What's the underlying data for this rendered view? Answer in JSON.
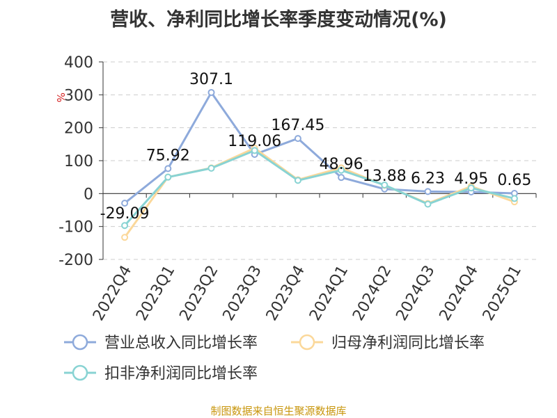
{
  "chart_data": {
    "type": "line",
    "title": "营收、净利同比增长率季度变动情况(%)",
    "ylabel": "%",
    "xlabel": "",
    "categories": [
      "2022Q4",
      "2023Q1",
      "2023Q2",
      "2023Q3",
      "2023Q4",
      "2024Q1",
      "2024Q2",
      "2024Q3",
      "2024Q4",
      "2025Q1"
    ],
    "ylim": [
      -200,
      400
    ],
    "yticks": [
      "400",
      "300",
      "200",
      "100",
      "0",
      "-100",
      "-200"
    ],
    "grid": true,
    "legend_position": "bottom-left",
    "series": [
      {
        "name": "营业总收入同比增长率",
        "color": "#8eaadb",
        "values": [
          -29.09,
          75.92,
          307.1,
          119.06,
          167.45,
          48.96,
          13.88,
          6.23,
          4.95,
          0.65
        ],
        "labels": [
          "-29.09",
          "75.92",
          "307.1",
          "119.06",
          "167.45",
          "48.96",
          "13.88",
          "6.23",
          "4.95",
          "0.65"
        ]
      },
      {
        "name": "归母净利润同比增长率",
        "color": "#fbd89a",
        "values": [
          -133,
          50,
          78,
          138,
          42,
          78,
          25,
          -30,
          22,
          -25
        ]
      },
      {
        "name": "扣非净利润同比增长率",
        "color": "#88d3d3",
        "values": [
          -97,
          50,
          77,
          131,
          40,
          71,
          26,
          -32,
          17,
          -15
        ]
      }
    ]
  },
  "footer": {
    "source": "制图数据来自恒生聚源数据库"
  }
}
